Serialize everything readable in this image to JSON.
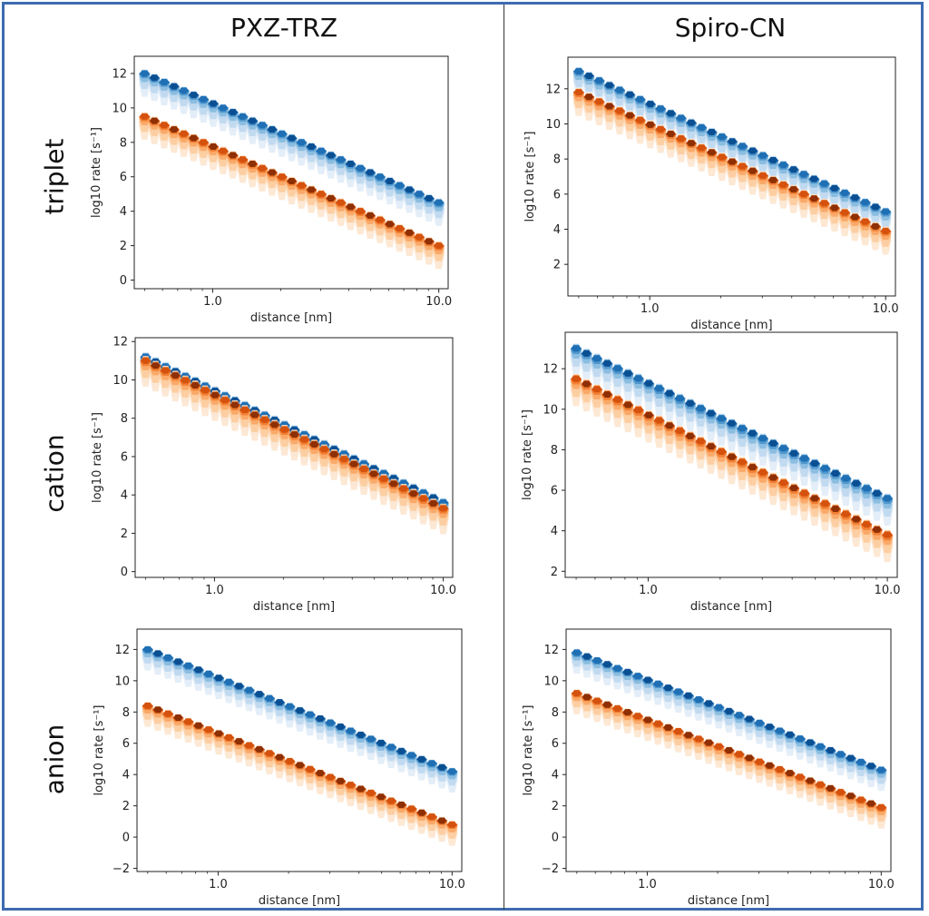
{
  "column_titles": [
    "PXZ-TRZ",
    "Spiro-CN"
  ],
  "row_titles": [
    "triplet",
    "cation",
    "anion"
  ],
  "colors": {
    "frame": "#3d6bb0",
    "blue_series": "#1f6fb4",
    "orange_series": "#e8571a"
  },
  "chart_data": [
    {
      "type": "heatmap",
      "panel": "triplet / PXZ-TRZ",
      "xlabel": "distance [nm]",
      "ylabel": "log10 rate [s⁻¹]",
      "xscale": "log",
      "xlim": [
        0.45,
        11
      ],
      "ylim": [
        -0.5,
        13
      ],
      "yticks": [
        0,
        2,
        4,
        6,
        8,
        10,
        12
      ],
      "xtick_labels": [
        "1.0",
        "10.0"
      ],
      "series": [
        {
          "color": "blue",
          "x": [
            0.5,
            10.0
          ],
          "y": [
            12.0,
            4.5
          ]
        },
        {
          "color": "orange",
          "x": [
            0.5,
            10.0
          ],
          "y": [
            9.5,
            2.0
          ]
        }
      ]
    },
    {
      "type": "heatmap",
      "panel": "triplet / Spiro-CN",
      "xlabel": "distance [nm]",
      "ylabel": "log10 rate [s⁻¹]",
      "xscale": "log",
      "xlim": [
        0.45,
        11
      ],
      "ylim": [
        0.2,
        13.8
      ],
      "yticks": [
        2,
        4,
        6,
        8,
        10,
        12
      ],
      "xtick_labels": [
        "1.0",
        "10.0"
      ],
      "series": [
        {
          "color": "blue",
          "x": [
            0.5,
            10.0
          ],
          "y": [
            13.0,
            5.0
          ]
        },
        {
          "color": "orange",
          "x": [
            0.5,
            10.0
          ],
          "y": [
            11.8,
            3.9
          ]
        }
      ]
    },
    {
      "type": "heatmap",
      "panel": "cation / PXZ-TRZ",
      "xlabel": "distance [nm]",
      "ylabel": "log10 rate [s⁻¹]",
      "xscale": "log",
      "xlim": [
        0.45,
        11
      ],
      "ylim": [
        -0.3,
        12.2
      ],
      "yticks": [
        0,
        2,
        4,
        6,
        8,
        10,
        12
      ],
      "xtick_labels": [
        "1.0",
        "10.0"
      ],
      "series": [
        {
          "color": "blue",
          "x": [
            0.5,
            10.0
          ],
          "y": [
            11.2,
            3.6
          ]
        },
        {
          "color": "orange",
          "x": [
            0.5,
            10.0
          ],
          "y": [
            11.0,
            3.3
          ]
        }
      ]
    },
    {
      "type": "heatmap",
      "panel": "cation / Spiro-CN",
      "xlabel": "distance [nm]",
      "ylabel": "log10 rate [s⁻¹]",
      "xscale": "log",
      "xlim": [
        0.45,
        11
      ],
      "ylim": [
        1.7,
        13.8
      ],
      "yticks": [
        2,
        4,
        6,
        8,
        10,
        12
      ],
      "xtick_labels": [
        "1.0",
        "10.0"
      ],
      "series": [
        {
          "color": "blue",
          "x": [
            0.5,
            10.0
          ],
          "y": [
            13.0,
            5.6
          ]
        },
        {
          "color": "orange",
          "x": [
            0.5,
            10.0
          ],
          "y": [
            11.5,
            3.8
          ]
        }
      ]
    },
    {
      "type": "heatmap",
      "panel": "anion / PXZ-TRZ",
      "xlabel": "distance [nm]",
      "ylabel": "log10 rate [s⁻¹]",
      "xscale": "log",
      "xlim": [
        0.45,
        11
      ],
      "ylim": [
        -2.2,
        13.3
      ],
      "yticks": [
        -2,
        0,
        2,
        4,
        6,
        8,
        10,
        12
      ],
      "xtick_labels": [
        "1.0",
        "10.0"
      ],
      "series": [
        {
          "color": "blue",
          "x": [
            0.5,
            10.0
          ],
          "y": [
            12.0,
            4.2
          ]
        },
        {
          "color": "orange",
          "x": [
            0.5,
            10.0
          ],
          "y": [
            8.4,
            0.8
          ]
        }
      ]
    },
    {
      "type": "heatmap",
      "panel": "anion / Spiro-CN",
      "xlabel": "distance [nm]",
      "ylabel": "log10 rate [s⁻¹]",
      "xscale": "log",
      "xlim": [
        0.45,
        11
      ],
      "ylim": [
        -2.2,
        13.3
      ],
      "yticks": [
        -2,
        0,
        2,
        4,
        6,
        8,
        10,
        12
      ],
      "xtick_labels": [
        "1.0",
        "10.0"
      ],
      "series": [
        {
          "color": "blue",
          "x": [
            0.5,
            10.0
          ],
          "y": [
            11.8,
            4.3
          ]
        },
        {
          "color": "orange",
          "x": [
            0.5,
            10.0
          ],
          "y": [
            9.2,
            1.9
          ]
        }
      ]
    }
  ]
}
